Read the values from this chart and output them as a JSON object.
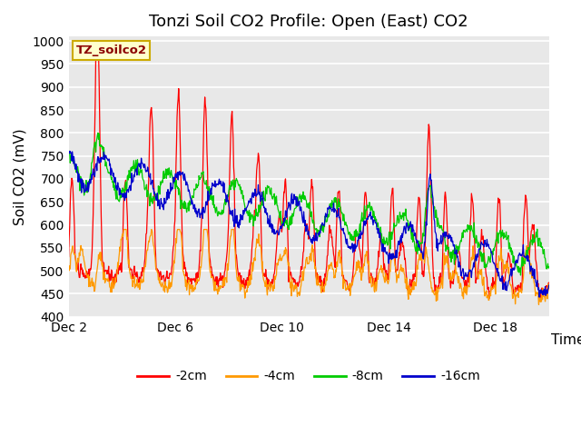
{
  "title": "Tonzi Soil CO2 Profile: Open (East) CO2",
  "ylabel": "Soil CO2 (mV)",
  "xlabel": "Time",
  "watermark_label": "TZ_soilco2",
  "ylim": [
    400,
    1010
  ],
  "yticks": [
    400,
    450,
    500,
    550,
    600,
    650,
    700,
    750,
    800,
    850,
    900,
    950,
    1000
  ],
  "xtick_labels": [
    "Dec 2",
    "Dec 6",
    "Dec 10",
    "Dec 14",
    "Dec 18"
  ],
  "xtick_pos": [
    0,
    4,
    8,
    12,
    16
  ],
  "xlim": [
    0,
    18
  ],
  "legend_labels": [
    "-2cm",
    "-4cm",
    "-8cm",
    "-16cm"
  ],
  "colors": [
    "#ff0000",
    "#ff9900",
    "#00cc00",
    "#0000cc"
  ],
  "plot_bg_color": "#e8e8e8",
  "title_fontsize": 13,
  "axis_fontsize": 11,
  "tick_fontsize": 10,
  "legend_fontsize": 10,
  "linewidth": 0.9
}
